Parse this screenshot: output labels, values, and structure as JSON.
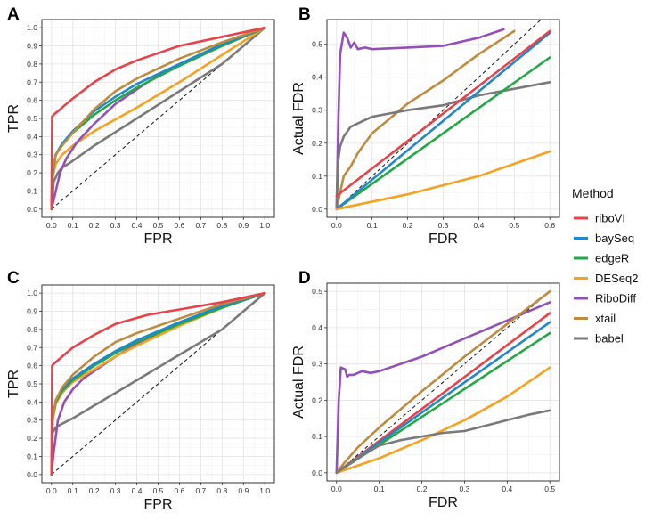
{
  "colors": {
    "riboVI": "#E8424A",
    "baySeq": "#2188C9",
    "edgeR": "#23A846",
    "DESeq2": "#F7A120",
    "RiboDiff": "#9250B8",
    "xtail": "#BF8B3E",
    "babel": "#7A7A7A",
    "diagonal": "#111111",
    "panel_bg": "#FFFFFF",
    "grid": "#E6E6E6",
    "border": "#333333"
  },
  "legend": {
    "title": "Method",
    "entries": [
      "riboVI",
      "baySeq",
      "edgeR",
      "DESeq2",
      "RiboDiff",
      "xtail",
      "babel"
    ]
  },
  "chart_data": [
    {
      "panel": "A",
      "type": "line",
      "xlabel": "FPR",
      "ylabel": "TPR",
      "xlim": [
        0,
        1
      ],
      "ylim": [
        0,
        1
      ],
      "xticks": [
        "0.0",
        "0.1",
        "0.2",
        "0.3",
        "0.4",
        "0.5",
        "0.6",
        "0.7",
        "0.8",
        "0.9",
        "1.0"
      ],
      "yticks": [
        "0.0",
        "0.1",
        "0.2",
        "0.3",
        "0.4",
        "0.5",
        "0.6",
        "0.7",
        "0.8",
        "0.9",
        "1.0"
      ],
      "grid": true,
      "reference_line": "diagonal y = x",
      "series": [
        {
          "name": "babel",
          "x": [
            0,
            0.01,
            0.03,
            0.05,
            0.08,
            0.2,
            0.4,
            0.6,
            0.8,
            1.0
          ],
          "y": [
            0,
            0.15,
            0.2,
            0.23,
            0.25,
            0.35,
            0.5,
            0.65,
            0.8,
            1.0
          ]
        },
        {
          "name": "DESeq2",
          "x": [
            0,
            0.005,
            0.02,
            0.05,
            0.1,
            0.2,
            0.4,
            0.6,
            0.8,
            1.0
          ],
          "y": [
            0,
            0.17,
            0.25,
            0.3,
            0.35,
            0.43,
            0.56,
            0.7,
            0.85,
            1.0
          ]
        },
        {
          "name": "RiboDiff",
          "x": [
            0,
            0.02,
            0.04,
            0.07,
            0.12,
            0.2,
            0.3,
            0.45,
            0.6,
            0.8,
            1.0
          ],
          "y": [
            0,
            0.1,
            0.2,
            0.28,
            0.37,
            0.47,
            0.58,
            0.7,
            0.8,
            0.9,
            1.0
          ]
        },
        {
          "name": "edgeR",
          "x": [
            0,
            0.005,
            0.02,
            0.05,
            0.1,
            0.2,
            0.3,
            0.4,
            0.6,
            0.8,
            1.0
          ],
          "y": [
            0,
            0.2,
            0.3,
            0.36,
            0.42,
            0.52,
            0.6,
            0.67,
            0.79,
            0.9,
            1.0
          ]
        },
        {
          "name": "baySeq",
          "x": [
            0,
            0.005,
            0.02,
            0.05,
            0.1,
            0.2,
            0.3,
            0.4,
            0.6,
            0.8,
            1.0
          ],
          "y": [
            0,
            0.2,
            0.3,
            0.36,
            0.43,
            0.54,
            0.62,
            0.69,
            0.8,
            0.91,
            1.0
          ]
        },
        {
          "name": "xtail",
          "x": [
            0,
            0.005,
            0.02,
            0.05,
            0.1,
            0.2,
            0.3,
            0.4,
            0.6,
            0.8,
            1.0
          ],
          "y": [
            0,
            0.22,
            0.3,
            0.35,
            0.42,
            0.55,
            0.65,
            0.72,
            0.83,
            0.92,
            1.0
          ]
        },
        {
          "name": "riboVI",
          "x": [
            0,
            0.003,
            0.01,
            0.03,
            0.06,
            0.1,
            0.2,
            0.3,
            0.4,
            0.5,
            0.6,
            0.8,
            1.0
          ],
          "y": [
            0,
            0.51,
            0.52,
            0.54,
            0.57,
            0.61,
            0.7,
            0.77,
            0.82,
            0.86,
            0.9,
            0.95,
            1.0
          ]
        }
      ]
    },
    {
      "panel": "B",
      "type": "line",
      "xlabel": "FDR",
      "ylabel": "Actual FDR",
      "xlim": [
        0,
        0.6
      ],
      "ylim": [
        0,
        0.55
      ],
      "xticks": [
        "0.0",
        "0.1",
        "0.2",
        "0.3",
        "0.4",
        "0.5",
        "0.6"
      ],
      "yticks": [
        "0.0",
        "0.1",
        "0.2",
        "0.3",
        "0.4",
        "0.5"
      ],
      "grid": true,
      "reference_line": "diagonal y = x",
      "series": [
        {
          "name": "RiboDiff",
          "x": [
            0,
            0.005,
            0.01,
            0.02,
            0.03,
            0.04,
            0.05,
            0.06,
            0.08,
            0.1,
            0.2,
            0.3,
            0.4,
            0.47
          ],
          "y": [
            0,
            0.27,
            0.47,
            0.535,
            0.52,
            0.49,
            0.505,
            0.485,
            0.49,
            0.485,
            0.49,
            0.495,
            0.52,
            0.545
          ]
        },
        {
          "name": "xtail",
          "x": [
            0,
            0.01,
            0.02,
            0.04,
            0.06,
            0.08,
            0.1,
            0.2,
            0.3,
            0.4,
            0.5
          ],
          "y": [
            0,
            0.05,
            0.1,
            0.13,
            0.17,
            0.2,
            0.23,
            0.32,
            0.39,
            0.47,
            0.54
          ]
        },
        {
          "name": "babel",
          "x": [
            0,
            0.005,
            0.01,
            0.02,
            0.04,
            0.06,
            0.1,
            0.15,
            0.2,
            0.3,
            0.4,
            0.5,
            0.6
          ],
          "y": [
            0,
            0.15,
            0.19,
            0.22,
            0.25,
            0.26,
            0.28,
            0.29,
            0.3,
            0.315,
            0.345,
            0.365,
            0.385
          ]
        },
        {
          "name": "edgeR",
          "x": [
            0,
            0.6
          ],
          "y": [
            0,
            0.46
          ]
        },
        {
          "name": "baySeq",
          "x": [
            0,
            0.6
          ],
          "y": [
            0,
            0.535
          ]
        },
        {
          "name": "riboVI",
          "x": [
            0,
            0.6
          ],
          "y": [
            0.04,
            0.54
          ]
        },
        {
          "name": "DESeq2",
          "x": [
            0,
            0.2,
            0.4,
            0.6
          ],
          "y": [
            0,
            0.045,
            0.1,
            0.175
          ]
        }
      ]
    },
    {
      "panel": "C",
      "type": "line",
      "xlabel": "FPR",
      "ylabel": "TPR",
      "xlim": [
        0,
        1
      ],
      "ylim": [
        0,
        1
      ],
      "xticks": [
        "0.0",
        "0.1",
        "0.2",
        "0.3",
        "0.4",
        "0.5",
        "0.6",
        "0.7",
        "0.8",
        "0.9",
        "1.0"
      ],
      "yticks": [
        "0.0",
        "0.1",
        "0.2",
        "0.3",
        "0.4",
        "0.5",
        "0.6",
        "0.7",
        "0.8",
        "0.9",
        "1.0"
      ],
      "grid": true,
      "reference_line": "diagonal y = x",
      "series": [
        {
          "name": "babel",
          "x": [
            0,
            0.005,
            0.02,
            0.05,
            0.1,
            0.2,
            0.4,
            0.6,
            0.8,
            0.9,
            1.0
          ],
          "y": [
            0,
            0.23,
            0.26,
            0.28,
            0.31,
            0.38,
            0.52,
            0.66,
            0.8,
            0.9,
            1.0
          ]
        },
        {
          "name": "RiboDiff",
          "x": [
            0,
            0.01,
            0.03,
            0.06,
            0.1,
            0.15,
            0.2,
            0.3,
            0.4,
            0.6,
            0.8,
            1.0
          ],
          "y": [
            0,
            0.12,
            0.3,
            0.4,
            0.47,
            0.53,
            0.57,
            0.65,
            0.72,
            0.83,
            0.92,
            1.0
          ]
        },
        {
          "name": "DESeq2",
          "x": [
            0,
            0.005,
            0.02,
            0.05,
            0.1,
            0.2,
            0.3,
            0.4,
            0.6,
            0.8,
            1.0
          ],
          "y": [
            0,
            0.3,
            0.39,
            0.45,
            0.51,
            0.58,
            0.65,
            0.71,
            0.82,
            0.92,
            1.0
          ]
        },
        {
          "name": "edgeR",
          "x": [
            0,
            0.005,
            0.02,
            0.05,
            0.1,
            0.2,
            0.3,
            0.4,
            0.6,
            0.8,
            1.0
          ],
          "y": [
            0,
            0.3,
            0.4,
            0.46,
            0.52,
            0.6,
            0.67,
            0.73,
            0.83,
            0.92,
            1.0
          ]
        },
        {
          "name": "baySeq",
          "x": [
            0,
            0.005,
            0.02,
            0.05,
            0.1,
            0.2,
            0.3,
            0.4,
            0.6,
            0.8,
            1.0
          ],
          "y": [
            0,
            0.31,
            0.41,
            0.47,
            0.53,
            0.61,
            0.68,
            0.74,
            0.84,
            0.93,
            1.0
          ]
        },
        {
          "name": "xtail",
          "x": [
            0,
            0.005,
            0.02,
            0.05,
            0.1,
            0.2,
            0.3,
            0.4,
            0.6,
            0.8,
            1.0
          ],
          "y": [
            0,
            0.3,
            0.41,
            0.48,
            0.55,
            0.65,
            0.73,
            0.78,
            0.86,
            0.94,
            1.0
          ]
        },
        {
          "name": "riboVI",
          "x": [
            0,
            0.003,
            0.01,
            0.03,
            0.06,
            0.1,
            0.2,
            0.3,
            0.45,
            0.6,
            0.8,
            1.0
          ],
          "y": [
            0,
            0.6,
            0.61,
            0.63,
            0.66,
            0.7,
            0.77,
            0.83,
            0.88,
            0.91,
            0.95,
            1.0
          ]
        }
      ]
    },
    {
      "panel": "D",
      "type": "line",
      "xlabel": "FDR",
      "ylabel": "Actual FDR",
      "xlim": [
        0,
        0.5
      ],
      "ylim": [
        0,
        0.5
      ],
      "xticks": [
        "0.0",
        "0.1",
        "0.2",
        "0.3",
        "0.4",
        "0.5"
      ],
      "yticks": [
        "0.0",
        "0.1",
        "0.2",
        "0.3",
        "0.4",
        "0.5"
      ],
      "grid": true,
      "reference_line": "diagonal y = x",
      "series": [
        {
          "name": "RiboDiff",
          "x": [
            0,
            0.005,
            0.01,
            0.02,
            0.025,
            0.03,
            0.04,
            0.06,
            0.08,
            0.1,
            0.2,
            0.3,
            0.4,
            0.5
          ],
          "y": [
            0,
            0.2,
            0.29,
            0.285,
            0.265,
            0.27,
            0.27,
            0.28,
            0.275,
            0.28,
            0.32,
            0.37,
            0.42,
            0.47
          ]
        },
        {
          "name": "xtail",
          "x": [
            0,
            0.02,
            0.05,
            0.1,
            0.2,
            0.3,
            0.4,
            0.5
          ],
          "y": [
            0,
            0.03,
            0.07,
            0.125,
            0.225,
            0.32,
            0.41,
            0.5
          ]
        },
        {
          "name": "riboVI",
          "x": [
            0,
            0.5
          ],
          "y": [
            0,
            0.44
          ]
        },
        {
          "name": "baySeq",
          "x": [
            0,
            0.5
          ],
          "y": [
            0,
            0.415
          ]
        },
        {
          "name": "edgeR",
          "x": [
            0,
            0.5
          ],
          "y": [
            0,
            0.385
          ]
        },
        {
          "name": "DESeq2",
          "x": [
            0,
            0.1,
            0.2,
            0.3,
            0.4,
            0.5
          ],
          "y": [
            0,
            0.04,
            0.09,
            0.145,
            0.21,
            0.29
          ]
        },
        {
          "name": "babel",
          "x": [
            0,
            0.05,
            0.1,
            0.15,
            0.2,
            0.25,
            0.3,
            0.35,
            0.4,
            0.45,
            0.5
          ],
          "y": [
            0,
            0.04,
            0.075,
            0.09,
            0.1,
            0.11,
            0.115,
            0.13,
            0.145,
            0.16,
            0.172
          ]
        }
      ]
    }
  ]
}
